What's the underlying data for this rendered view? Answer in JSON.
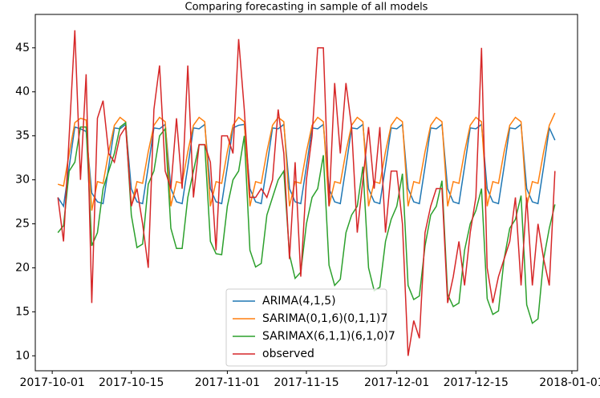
{
  "chart_data": {
    "type": "line",
    "title": "Comparing forecasting in sample of all models",
    "x": [
      "2017-10-02",
      "2017-10-03",
      "2017-10-04",
      "2017-10-05",
      "2017-10-06",
      "2017-10-07",
      "2017-10-08",
      "2017-10-09",
      "2017-10-10",
      "2017-10-11",
      "2017-10-12",
      "2017-10-13",
      "2017-10-14",
      "2017-10-15",
      "2017-10-16",
      "2017-10-17",
      "2017-10-18",
      "2017-10-19",
      "2017-10-20",
      "2017-10-21",
      "2017-10-22",
      "2017-10-23",
      "2017-10-24",
      "2017-10-25",
      "2017-10-26",
      "2017-10-27",
      "2017-10-28",
      "2017-10-29",
      "2017-10-30",
      "2017-10-31",
      "2017-11-01",
      "2017-11-02",
      "2017-11-03",
      "2017-11-04",
      "2017-11-05",
      "2017-11-06",
      "2017-11-07",
      "2017-11-08",
      "2017-11-09",
      "2017-11-10",
      "2017-11-11",
      "2017-11-12",
      "2017-11-13",
      "2017-11-14",
      "2017-11-15",
      "2017-11-16",
      "2017-11-17",
      "2017-11-18",
      "2017-11-19",
      "2017-11-20",
      "2017-11-21",
      "2017-11-22",
      "2017-11-23",
      "2017-11-24",
      "2017-11-25",
      "2017-11-26",
      "2017-11-27",
      "2017-11-28",
      "2017-11-29",
      "2017-11-30",
      "2017-12-01",
      "2017-12-02",
      "2017-12-03",
      "2017-12-04",
      "2017-12-05",
      "2017-12-06",
      "2017-12-07",
      "2017-12-08",
      "2017-12-09",
      "2017-12-10",
      "2017-12-11",
      "2017-12-12",
      "2017-12-13",
      "2017-12-14",
      "2017-12-15",
      "2017-12-16",
      "2017-12-17",
      "2017-12-18",
      "2017-12-19",
      "2017-12-20",
      "2017-12-21",
      "2017-12-22",
      "2017-12-23",
      "2017-12-24",
      "2017-12-25",
      "2017-12-26",
      "2017-12-27",
      "2017-12-28",
      "2017-12-29"
    ],
    "series": [
      {
        "name": "ARIMA(4,1,5)",
        "color": "#1f77b4",
        "values": [
          28,
          27,
          31.5,
          36,
          35.8,
          35.5,
          28.5,
          27.5,
          27.3,
          31.5,
          35.9,
          35.8,
          36.3,
          29,
          27.5,
          27.3,
          31.5,
          35.9,
          35.8,
          36.3,
          29,
          27.5,
          27.3,
          31.5,
          35.9,
          35.8,
          36.3,
          29,
          27.5,
          27.3,
          31.5,
          35.9,
          36.2,
          36.3,
          29,
          27.5,
          27.3,
          31.5,
          35.9,
          35.8,
          36.3,
          29,
          27.5,
          27.3,
          31.5,
          35.9,
          35.8,
          36.3,
          29,
          27.5,
          27.3,
          31.5,
          35.9,
          35.8,
          36.3,
          29,
          27.5,
          27.3,
          31.5,
          35.9,
          35.8,
          36.3,
          29,
          27.5,
          27.3,
          31.5,
          35.9,
          35.8,
          36.3,
          29,
          27.5,
          27.3,
          31.5,
          35.9,
          35.8,
          36.3,
          29,
          27.5,
          27.3,
          31.5,
          35.9,
          35.8,
          36.3,
          29,
          27.5,
          27.3,
          31.5,
          35.9,
          34.5
        ]
      },
      {
        "name": "SARIMA(0,1,6)(0,1,1)7",
        "color": "#ff7f0e",
        "values": [
          29.5,
          29.3,
          33,
          36.5,
          37,
          36.8,
          26.5,
          29.8,
          29.6,
          33.2,
          36.2,
          37.1,
          36.6,
          27,
          29.8,
          29.6,
          33.2,
          36.2,
          37.1,
          36.6,
          27,
          29.8,
          29.6,
          33.2,
          36.2,
          37.1,
          36.6,
          27,
          29.8,
          29.6,
          33.2,
          36.2,
          37.1,
          36.6,
          27,
          29.8,
          29.6,
          33.2,
          36.2,
          37.1,
          36.6,
          27,
          29.8,
          29.6,
          33.2,
          36.2,
          37.1,
          36.6,
          27,
          29.8,
          29.6,
          33.2,
          36.2,
          37.1,
          36.6,
          27,
          29.8,
          29.6,
          33.2,
          36.2,
          37.1,
          36.6,
          27,
          29.8,
          29.6,
          33.2,
          36.2,
          37.1,
          36.6,
          27,
          29.8,
          29.6,
          33.2,
          36.2,
          37.1,
          36.6,
          27,
          29.8,
          29.6,
          33.2,
          36.2,
          37.1,
          36.6,
          27,
          29.8,
          29.6,
          33.2,
          36.2,
          37.6
        ]
      },
      {
        "name": "SARIMAX(6,1,1)(6,1,0)7",
        "color": "#2ca02c",
        "values": [
          24,
          24.8,
          31,
          32,
          36,
          36,
          22.5,
          24,
          29,
          31,
          33,
          36,
          36.5,
          26,
          22.3,
          22.7,
          29.5,
          31,
          35,
          35.8,
          24.5,
          22.2,
          22.2,
          28,
          31,
          34,
          34,
          23,
          21.6,
          21.5,
          27,
          30,
          31,
          35,
          22,
          20.1,
          20.5,
          26,
          28,
          30,
          31,
          21.5,
          18.8,
          19.5,
          25,
          28,
          29,
          32.8,
          20.3,
          18,
          18.7,
          24,
          26,
          27,
          31.5,
          20,
          17.4,
          17.8,
          23,
          25.5,
          27,
          30.7,
          18,
          16.4,
          16.8,
          22.5,
          26,
          27,
          29.9,
          17,
          15.6,
          16,
          22,
          25,
          26.5,
          29,
          16.5,
          14.7,
          15.1,
          21,
          24.5,
          25.5,
          28.2,
          15.8,
          13.7,
          14.2,
          21,
          24.5,
          27.2
        ]
      },
      {
        "name": "observed",
        "color": "#d62728",
        "values": [
          28,
          23,
          35,
          47,
          30,
          42,
          16,
          37,
          39,
          33,
          32,
          35,
          36,
          27,
          29,
          25,
          20,
          38,
          43,
          31,
          29,
          37,
          29,
          43,
          28,
          34,
          34,
          32,
          22,
          35,
          35,
          33,
          46,
          38,
          28,
          28,
          29,
          28,
          30,
          38,
          33,
          21,
          32,
          19,
          30,
          35,
          45,
          45,
          27,
          41,
          33,
          41,
          36,
          24,
          30,
          36,
          29,
          36,
          24,
          31,
          31,
          25,
          10,
          14,
          12,
          24,
          27,
          29,
          29,
          16,
          19,
          23,
          18,
          24,
          28,
          45,
          20,
          16,
          19,
          21,
          23,
          28,
          18,
          28,
          18,
          25,
          21,
          18,
          31
        ]
      }
    ],
    "xlim": [
      "2017-09-28",
      "2018-01-02"
    ],
    "xticks": [
      "2017-10-01",
      "2017-10-15",
      "2017-11-01",
      "2017-11-15",
      "2017-12-01",
      "2017-12-15",
      "2018-01-01"
    ],
    "ylim": [
      8.3,
      48.8
    ],
    "yticks": [
      10,
      15,
      20,
      25,
      30,
      35,
      40,
      45
    ],
    "legend": "lower center"
  }
}
